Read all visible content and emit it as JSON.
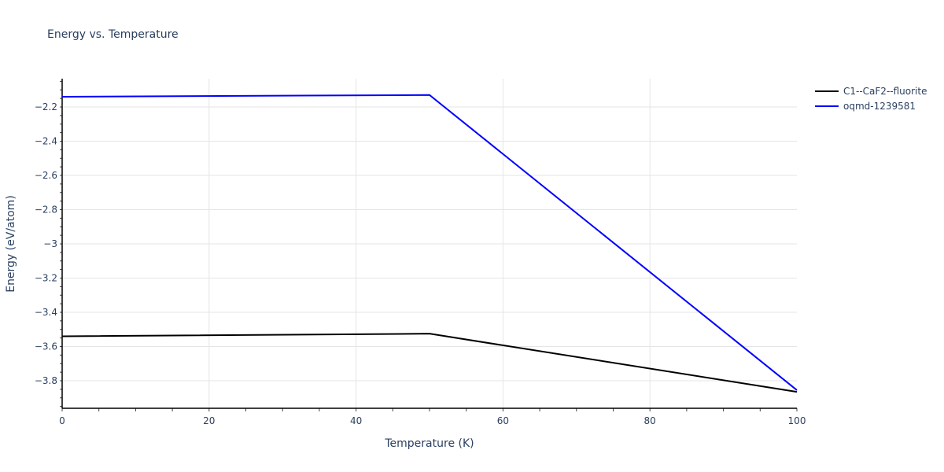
{
  "chart_data": {
    "type": "line",
    "title": "Energy vs. Temperature",
    "xlabel": "Temperature (K)",
    "ylabel": "Energy (eV/atom)",
    "xlim": [
      0,
      100
    ],
    "ylim": [
      -3.95,
      -2.06
    ],
    "x_ticks": [
      "0",
      "20",
      "40",
      "60",
      "80",
      "100"
    ],
    "y_ticks": [
      "−2.2",
      "−2.4",
      "−2.6",
      "−2.8",
      "−3",
      "−3.2",
      "−3.4",
      "−3.6",
      "−3.8"
    ],
    "grid": true,
    "legend_position": "top-right outside",
    "series": [
      {
        "name": "C1--CaF2--fluorite",
        "color": "#000000",
        "x": [
          0,
          50,
          100
        ],
        "values": [
          -3.54,
          -3.525,
          -3.865
        ]
      },
      {
        "name": "oqmd-1239581",
        "color": "#0000ff",
        "x": [
          0,
          50,
          100
        ],
        "values": [
          -2.14,
          -2.13,
          -3.855
        ]
      }
    ]
  }
}
